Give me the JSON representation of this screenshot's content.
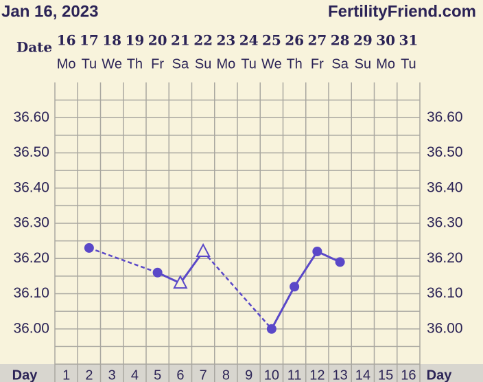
{
  "chart_data": {
    "type": "line",
    "title": "Jan 16, 2023",
    "source": "FertilityFriend.com",
    "date_label": "Date",
    "day_label": "Day",
    "categories": [
      "16",
      "17",
      "18",
      "19",
      "20",
      "21",
      "22",
      "23",
      "24",
      "25",
      "26",
      "27",
      "28",
      "29",
      "30",
      "31"
    ],
    "weekdays": [
      "Mo",
      "Tu",
      "We",
      "Th",
      "Fr",
      "Sa",
      "Su",
      "Mo",
      "Tu",
      "We",
      "Th",
      "Fr",
      "Sa",
      "Su",
      "Mo",
      "Tu"
    ],
    "days": [
      1,
      2,
      3,
      4,
      5,
      6,
      7,
      8,
      9,
      10,
      11,
      12,
      13,
      14,
      15,
      16
    ],
    "series": [
      {
        "color": "#5a48c8",
        "values": [
          null,
          36.23,
          null,
          null,
          36.16,
          36.13,
          36.22,
          null,
          null,
          36.0,
          36.12,
          36.22,
          36.19,
          null,
          null,
          null
        ],
        "markers": [
          null,
          "circle",
          null,
          null,
          "circle",
          "open-triangle",
          "open-triangle",
          null,
          null,
          "circle",
          "circle",
          "circle",
          "circle",
          null,
          null,
          null
        ]
      }
    ],
    "ylim": [
      35.9,
      36.7
    ],
    "yticks": [
      {
        "value": 36.0,
        "label": "36.00"
      },
      {
        "value": 36.1,
        "label": "36.10"
      },
      {
        "value": 36.2,
        "label": "36.20"
      },
      {
        "value": 36.3,
        "label": "36.30"
      },
      {
        "value": 36.4,
        "label": "36.40"
      },
      {
        "value": 36.5,
        "label": "36.50"
      },
      {
        "value": 36.6,
        "label": "36.60"
      }
    ],
    "ygrid": [
      35.95,
      36.0,
      36.05,
      36.1,
      36.15,
      36.2,
      36.25,
      36.3,
      36.35,
      36.4,
      36.45,
      36.5,
      36.55,
      36.6,
      36.65
    ],
    "grid": true
  }
}
